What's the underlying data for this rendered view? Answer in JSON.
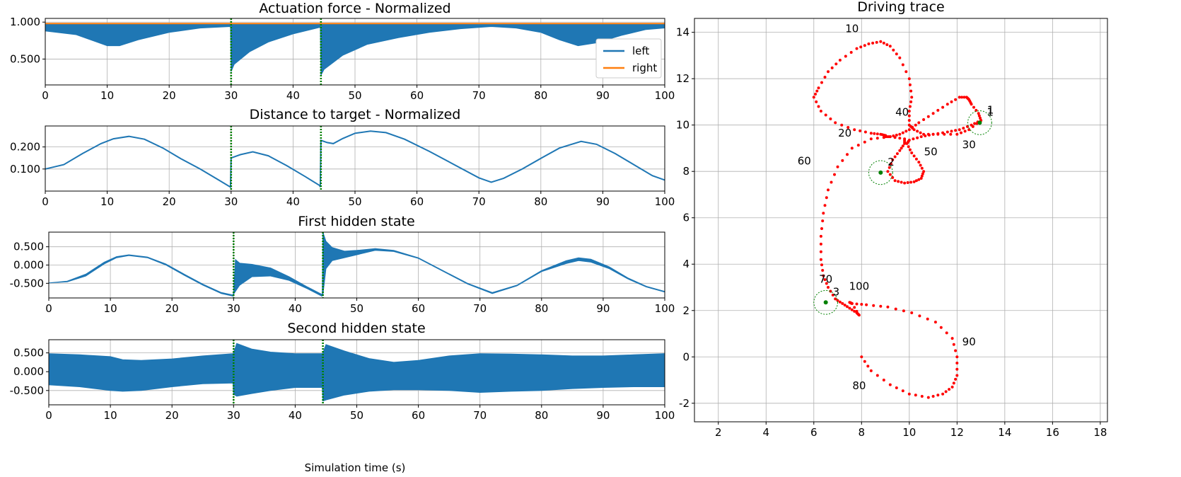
{
  "colors": {
    "left": "#1f77b4",
    "right": "#ff7f0e",
    "trace": "#ff0000",
    "marker": "#008000",
    "event": "#008000",
    "grid": "#b0b0b0"
  },
  "chart_data": [
    {
      "type": "line",
      "title": "Actuation force - Normalized",
      "xlim": [
        0,
        100
      ],
      "ylim": [
        0.15,
        1.05
      ],
      "xticks": [
        0,
        10,
        20,
        30,
        40,
        50,
        60,
        70,
        80,
        90,
        100
      ],
      "yticks": [
        0.5,
        1.0
      ],
      "ytick_labels": [
        "0.500",
        "1.000"
      ],
      "legend": "right",
      "event_lines": [
        30,
        44.5
      ],
      "series": [
        {
          "name": "left",
          "kind": "envelope",
          "x": [
            0,
            5,
            10,
            12,
            15,
            20,
            25,
            29.9,
            30,
            30.5,
            33,
            36,
            40,
            44.4,
            44.5,
            45,
            48,
            52,
            57,
            62,
            67,
            72,
            76,
            80,
            83,
            86,
            89,
            93,
            97,
            100
          ],
          "upper": [
            0.97,
            0.97,
            0.97,
            0.97,
            0.97,
            0.97,
            0.97,
            0.97,
            0.97,
            0.97,
            0.97,
            0.97,
            0.97,
            0.97,
            0.97,
            0.97,
            0.97,
            0.97,
            0.97,
            0.97,
            0.97,
            0.97,
            0.97,
            0.97,
            0.97,
            0.97,
            0.97,
            0.97,
            0.97,
            0.97
          ],
          "lower": [
            0.88,
            0.83,
            0.68,
            0.68,
            0.76,
            0.86,
            0.92,
            0.94,
            0.33,
            0.43,
            0.6,
            0.73,
            0.84,
            0.93,
            0.28,
            0.36,
            0.55,
            0.7,
            0.79,
            0.86,
            0.91,
            0.94,
            0.92,
            0.86,
            0.76,
            0.68,
            0.72,
            0.82,
            0.9,
            0.92
          ]
        },
        {
          "name": "right",
          "kind": "line",
          "x": [
            0,
            100
          ],
          "y": [
            0.98,
            0.98
          ]
        }
      ]
    },
    {
      "type": "line",
      "title": "Distance to target - Normalized",
      "xlim": [
        0,
        100
      ],
      "ylim": [
        0.0,
        0.295
      ],
      "xticks": [
        0,
        10,
        20,
        30,
        40,
        50,
        60,
        70,
        80,
        90,
        100
      ],
      "yticks": [
        0.1,
        0.2
      ],
      "ytick_labels": [
        "0.100",
        "0.200"
      ],
      "event_lines": [
        30,
        44.5
      ],
      "series": [
        {
          "name": "left",
          "kind": "line",
          "x": [
            0,
            3,
            6,
            9,
            11,
            13.5,
            16,
            19,
            22,
            25,
            28,
            29.9,
            30,
            31.5,
            33.5,
            36,
            39,
            42,
            44.3,
            44.4,
            44.5,
            45.5,
            46.5,
            48,
            50,
            52.5,
            55,
            58,
            62,
            66,
            70,
            72,
            74,
            77,
            80,
            83,
            86.5,
            89,
            92,
            95,
            98,
            100
          ],
          "y": [
            0.1,
            0.12,
            0.17,
            0.215,
            0.237,
            0.248,
            0.235,
            0.195,
            0.145,
            0.1,
            0.05,
            0.018,
            0.15,
            0.165,
            0.178,
            0.16,
            0.115,
            0.065,
            0.025,
            0.018,
            0.23,
            0.22,
            0.215,
            0.238,
            0.262,
            0.272,
            0.265,
            0.235,
            0.18,
            0.12,
            0.06,
            0.04,
            0.058,
            0.1,
            0.148,
            0.195,
            0.225,
            0.212,
            0.17,
            0.12,
            0.07,
            0.05
          ]
        }
      ]
    },
    {
      "type": "line",
      "title": "First hidden state",
      "xlim": [
        0,
        100
      ],
      "ylim": [
        -0.9,
        0.9
      ],
      "xticks": [
        0,
        10,
        20,
        30,
        40,
        50,
        60,
        70,
        80,
        90,
        100
      ],
      "yticks": [
        -0.5,
        0.0,
        0.5
      ],
      "ytick_labels": [
        "-0.500",
        "0.000",
        "0.500"
      ],
      "event_lines": [
        30,
        44.5
      ],
      "series": [
        {
          "name": "left",
          "kind": "envelope",
          "x": [
            0,
            3,
            6,
            9,
            11,
            13,
            16,
            19,
            22,
            25,
            28,
            29.9,
            30,
            30.3,
            31,
            33,
            36,
            39,
            42,
            44.3,
            44.4,
            44.5,
            45,
            46,
            48,
            50,
            53,
            56,
            60,
            64,
            68,
            72,
            76,
            80,
            84,
            86,
            88,
            91,
            94,
            97,
            100
          ],
          "upper": [
            -0.49,
            -0.44,
            -0.25,
            0.08,
            0.23,
            0.28,
            0.22,
            0.03,
            -0.25,
            -0.52,
            -0.75,
            -0.82,
            -0.75,
            0.15,
            0.05,
            0.02,
            -0.08,
            -0.32,
            -0.6,
            -0.8,
            -0.8,
            0.9,
            0.65,
            0.48,
            0.38,
            0.4,
            0.45,
            0.4,
            0.2,
            -0.15,
            -0.5,
            -0.75,
            -0.55,
            -0.15,
            0.12,
            0.2,
            0.16,
            -0.05,
            -0.35,
            -0.58,
            -0.72
          ],
          "lower": [
            -0.49,
            -0.46,
            -0.3,
            0.03,
            0.2,
            0.26,
            0.2,
            0.0,
            -0.28,
            -0.55,
            -0.78,
            -0.85,
            -0.8,
            -0.72,
            -0.55,
            -0.32,
            -0.3,
            -0.42,
            -0.65,
            -0.85,
            -0.85,
            -0.82,
            -0.1,
            0.12,
            0.2,
            0.28,
            0.4,
            0.37,
            0.18,
            -0.17,
            -0.52,
            -0.78,
            -0.57,
            -0.18,
            0.04,
            0.12,
            0.08,
            -0.1,
            -0.38,
            -0.6,
            -0.74
          ]
        }
      ]
    },
    {
      "type": "line",
      "title": "Second hidden state",
      "xlabel": "Simulation time (s)",
      "xlim": [
        0,
        100
      ],
      "ylim": [
        -0.88,
        0.85
      ],
      "xticks": [
        0,
        10,
        20,
        30,
        40,
        50,
        60,
        70,
        80,
        90,
        100
      ],
      "yticks": [
        -0.5,
        0.0,
        0.5
      ],
      "ytick_labels": [
        "-0.500",
        "0.000",
        "0.500"
      ],
      "event_lines": [
        30,
        44.5
      ],
      "series": [
        {
          "name": "left",
          "kind": "envelope",
          "x": [
            0,
            5,
            10,
            12,
            15,
            20,
            25,
            29.9,
            30,
            30.5,
            33,
            36,
            40,
            44.4,
            44.5,
            45,
            48,
            52,
            56,
            60,
            65,
            70,
            75,
            80,
            85,
            90,
            95,
            100
          ],
          "upper": [
            0.48,
            0.45,
            0.4,
            0.32,
            0.3,
            0.34,
            0.42,
            0.48,
            0.5,
            0.75,
            0.6,
            0.52,
            0.48,
            0.48,
            0.5,
            0.72,
            0.55,
            0.35,
            0.25,
            0.3,
            0.42,
            0.48,
            0.47,
            0.45,
            0.42,
            0.42,
            0.45,
            0.48
          ],
          "lower": [
            -0.35,
            -0.4,
            -0.5,
            -0.52,
            -0.5,
            -0.4,
            -0.32,
            -0.3,
            -0.6,
            -0.65,
            -0.58,
            -0.5,
            -0.42,
            -0.42,
            -0.78,
            -0.75,
            -0.62,
            -0.52,
            -0.48,
            -0.48,
            -0.5,
            -0.55,
            -0.52,
            -0.5,
            -0.45,
            -0.42,
            -0.4,
            -0.4
          ]
        }
      ]
    },
    {
      "type": "scatter",
      "title": "Driving trace",
      "xlim": [
        1.0,
        18.3
      ],
      "ylim": [
        -2.8,
        14.6
      ],
      "xticks": [
        2,
        4,
        6,
        8,
        10,
        12,
        14,
        16,
        18
      ],
      "yticks": [
        -2,
        0,
        2,
        4,
        6,
        8,
        10,
        12,
        14
      ],
      "grid": true,
      "aspect": "equal",
      "trace": {
        "x": [
          13.0,
          12.5,
          12.0,
          11.2,
          10.6,
          10.2,
          10.0,
          10.0,
          10.1,
          10.0,
          9.6,
          9.2,
          8.8,
          8.3,
          7.8,
          7.1,
          6.6,
          6.2,
          6.0,
          6.3,
          6.9,
          7.7,
          8.4,
          8.8,
          9.0,
          9.0,
          9.2,
          9.6,
          10.0,
          10.4,
          11.0,
          11.6,
          12.1,
          12.4,
          12.5,
          12.6,
          12.9,
          13.0,
          12.6,
          12.1,
          11.6,
          11.0,
          10.5,
          10.0,
          9.9,
          10.1,
          10.4,
          10.6,
          10.5,
          10.2,
          9.8,
          9.4,
          9.1,
          9.3,
          9.6,
          9.8,
          9.8,
          9.2,
          8.4,
          7.6,
          7.0,
          6.6,
          6.4,
          6.3,
          6.3,
          6.4,
          6.6,
          6.9,
          7.2,
          7.5,
          7.8,
          7.9,
          7.6,
          7.5,
          7.6,
          8.2,
          9.1,
          10.1,
          11.1,
          11.8,
          12.0,
          12.0,
          11.8,
          11.4,
          10.8,
          10.0,
          9.2,
          8.4,
          8.0
        ],
        "y": [
          10.2,
          9.8,
          9.6,
          9.6,
          9.6,
          9.8,
          10.0,
          10.6,
          11.2,
          12.0,
          12.9,
          13.4,
          13.6,
          13.5,
          13.3,
          12.8,
          12.3,
          11.6,
          11.2,
          10.6,
          10.1,
          9.8,
          9.65,
          9.6,
          9.55,
          9.5,
          9.5,
          9.6,
          9.8,
          10.1,
          10.5,
          10.9,
          11.2,
          11.2,
          11.1,
          10.9,
          10.5,
          10.2,
          10.0,
          9.8,
          9.7,
          9.6,
          9.5,
          9.35,
          9.2,
          8.8,
          8.4,
          8.0,
          7.7,
          7.55,
          7.5,
          7.6,
          8.0,
          8.5,
          8.9,
          9.2,
          9.4,
          9.5,
          9.4,
          9.0,
          8.2,
          7.2,
          6.2,
          5.2,
          4.2,
          3.5,
          3.0,
          2.5,
          2.3,
          2.1,
          1.9,
          1.8,
          2.3,
          2.35,
          2.3,
          2.25,
          2.15,
          1.9,
          1.5,
          0.8,
          0.0,
          -0.8,
          -1.3,
          -1.6,
          -1.75,
          -1.6,
          -1.2,
          -0.6,
          0.0
        ]
      },
      "targets": [
        {
          "label": "1",
          "x": 12.95,
          "y": 10.1
        },
        {
          "label": "2",
          "x": 8.8,
          "y": 7.95
        },
        {
          "label": "3",
          "x": 6.5,
          "y": 2.35
        }
      ],
      "annotations": [
        {
          "text": "1",
          "x": 13.4,
          "y": 10.5
        },
        {
          "text": "10",
          "x": 7.6,
          "y": 14.0
        },
        {
          "text": "20",
          "x": 7.3,
          "y": 9.5
        },
        {
          "text": "30",
          "x": 12.5,
          "y": 9.0
        },
        {
          "text": "40",
          "x": 9.7,
          "y": 10.4
        },
        {
          "text": "50",
          "x": 10.9,
          "y": 8.7
        },
        {
          "text": "60",
          "x": 5.6,
          "y": 8.3
        },
        {
          "text": "70",
          "x": 6.5,
          "y": 3.2
        },
        {
          "text": "80",
          "x": 7.9,
          "y": -1.4
        },
        {
          "text": "90",
          "x": 12.5,
          "y": 0.5
        },
        {
          "text": "100",
          "x": 7.9,
          "y": 2.9
        }
      ]
    }
  ]
}
